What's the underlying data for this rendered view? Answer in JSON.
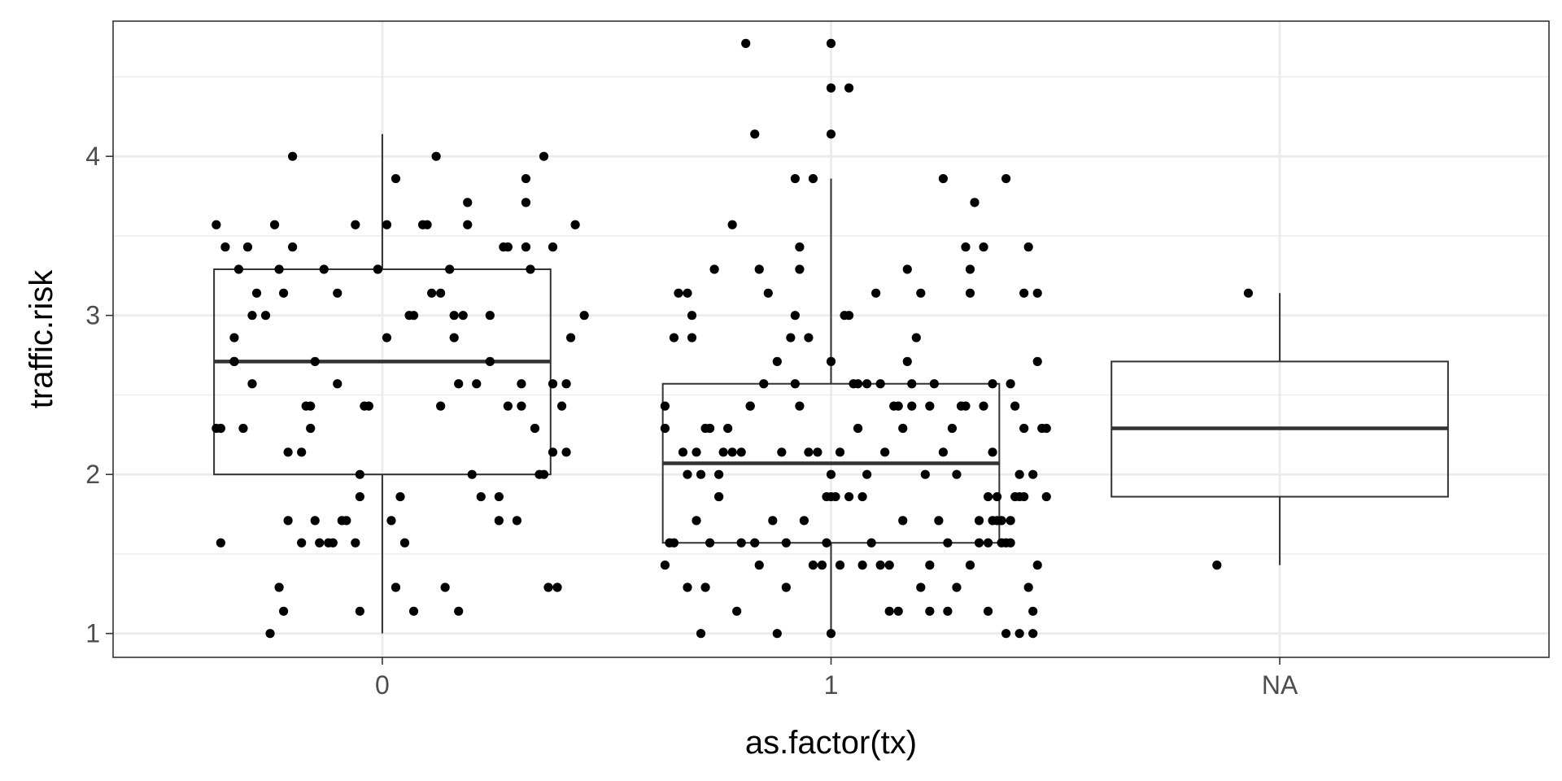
{
  "chart_data": {
    "type": "boxplot",
    "xlabel": "as.factor(tx)",
    "ylabel": "traffic.risk",
    "categories": [
      "0",
      "1",
      "NA"
    ],
    "yticks": [
      1,
      2,
      3,
      4
    ],
    "ylim": [
      0.85,
      4.85
    ],
    "grid": true,
    "colors": {
      "panel_border": "#333333",
      "grid": "#ebebeb",
      "box": "#333333",
      "point": "#000000"
    },
    "boxes": [
      {
        "category": "0",
        "whisker_low": 1.0,
        "q1": 2.0,
        "median": 2.71,
        "q3": 3.29,
        "whisker_high": 4.14
      },
      {
        "category": "1",
        "whisker_low": 1.0,
        "q1": 1.57,
        "median": 2.07,
        "q3": 2.57,
        "whisker_high": 3.86
      },
      {
        "category": "NA",
        "whisker_low": 1.43,
        "q1": 1.86,
        "median": 2.29,
        "q3": 2.71,
        "whisker_high": 3.14
      }
    ],
    "points": [
      {
        "x": -0.37,
        "y": 3.57
      },
      {
        "x": -0.35,
        "y": 3.43
      },
      {
        "x": -0.33,
        "y": 2.71
      },
      {
        "x": -0.33,
        "y": 2.71
      },
      {
        "x": -0.32,
        "y": 3.29
      },
      {
        "x": -0.36,
        "y": 2.29
      },
      {
        "x": -0.31,
        "y": 2.29
      },
      {
        "x": -0.36,
        "y": 1.57
      },
      {
        "x": -0.3,
        "y": 3.43
      },
      {
        "x": -0.29,
        "y": 3.0
      },
      {
        "x": -0.29,
        "y": 2.57
      },
      {
        "x": -0.28,
        "y": 3.14
      },
      {
        "x": -0.26,
        "y": 3.0
      },
      {
        "x": -0.24,
        "y": 3.57
      },
      {
        "x": -0.23,
        "y": 3.29
      },
      {
        "x": -0.22,
        "y": 3.14
      },
      {
        "x": -0.21,
        "y": 2.14
      },
      {
        "x": -0.2,
        "y": 3.43
      },
      {
        "x": -0.2,
        "y": 4.0
      },
      {
        "x": -0.17,
        "y": 2.43
      },
      {
        "x": -0.16,
        "y": 2.29
      },
      {
        "x": -0.16,
        "y": 2.43
      },
      {
        "x": -0.15,
        "y": 2.71
      },
      {
        "x": -0.15,
        "y": 1.71
      },
      {
        "x": -0.14,
        "y": 1.57
      },
      {
        "x": -0.12,
        "y": 1.57
      },
      {
        "x": -0.13,
        "y": 3.29
      },
      {
        "x": -0.11,
        "y": 1.57
      },
      {
        "x": -0.1,
        "y": 2.57
      },
      {
        "x": -0.09,
        "y": 1.71
      },
      {
        "x": -0.08,
        "y": 1.71
      },
      {
        "x": -0.06,
        "y": 3.57
      },
      {
        "x": -0.05,
        "y": 2.0
      },
      {
        "x": -0.05,
        "y": 1.86
      },
      {
        "x": -0.06,
        "y": 1.57
      },
      {
        "x": -0.04,
        "y": 2.43
      },
      {
        "x": -0.03,
        "y": 2.43
      },
      {
        "x": -0.01,
        "y": 3.29
      },
      {
        "x": -0.01,
        "y": 3.29
      },
      {
        "x": 0.01,
        "y": 3.57
      },
      {
        "x": 0.01,
        "y": 2.86
      },
      {
        "x": 0.02,
        "y": 1.71
      },
      {
        "x": 0.03,
        "y": 3.86
      },
      {
        "x": 0.04,
        "y": 1.86
      },
      {
        "x": 0.06,
        "y": 3.0
      },
      {
        "x": 0.07,
        "y": 3.0
      },
      {
        "x": 0.07,
        "y": 1.14
      },
      {
        "x": 0.09,
        "y": 3.57
      },
      {
        "x": 0.1,
        "y": 3.57
      },
      {
        "x": 0.11,
        "y": 3.14
      },
      {
        "x": 0.12,
        "y": 4.0
      },
      {
        "x": 0.13,
        "y": 2.43
      },
      {
        "x": 0.14,
        "y": 1.29
      },
      {
        "x": 0.15,
        "y": 3.29
      },
      {
        "x": 0.16,
        "y": 3.0
      },
      {
        "x": 0.16,
        "y": 2.86
      },
      {
        "x": 0.17,
        "y": 1.14
      },
      {
        "x": 0.17,
        "y": 2.57
      },
      {
        "x": 0.18,
        "y": 3.0
      },
      {
        "x": 0.19,
        "y": 3.71
      },
      {
        "x": 0.19,
        "y": 3.57
      },
      {
        "x": 0.2,
        "y": 2.0
      },
      {
        "x": 0.21,
        "y": 2.57
      },
      {
        "x": 0.24,
        "y": 3.0
      },
      {
        "x": 0.24,
        "y": 2.71
      },
      {
        "x": 0.26,
        "y": 1.86
      },
      {
        "x": 0.26,
        "y": 1.71
      },
      {
        "x": 0.27,
        "y": 3.43
      },
      {
        "x": 0.28,
        "y": 3.43
      },
      {
        "x": 0.28,
        "y": 2.43
      },
      {
        "x": 0.3,
        "y": 1.71
      },
      {
        "x": 0.31,
        "y": 2.43
      },
      {
        "x": 0.31,
        "y": 2.57
      },
      {
        "x": 0.32,
        "y": 3.86
      },
      {
        "x": 0.32,
        "y": 3.71
      },
      {
        "x": 0.32,
        "y": 3.43
      },
      {
        "x": 0.33,
        "y": 3.29
      },
      {
        "x": 0.34,
        "y": 2.29
      },
      {
        "x": 0.35,
        "y": 2.0
      },
      {
        "x": 0.36,
        "y": 4.0
      },
      {
        "x": 0.36,
        "y": 2.0
      },
      {
        "x": 0.37,
        "y": 1.29
      },
      {
        "x": 0.38,
        "y": 3.43
      },
      {
        "x": 0.38,
        "y": 2.57
      },
      {
        "x": 0.38,
        "y": 2.14
      },
      {
        "x": 0.39,
        "y": 1.29
      },
      {
        "x": 0.4,
        "y": 2.43
      },
      {
        "x": 0.41,
        "y": 2.14
      },
      {
        "x": 0.41,
        "y": 2.57
      },
      {
        "x": 0.42,
        "y": 2.86
      },
      {
        "x": 0.43,
        "y": 3.57
      },
      {
        "x": 0.45,
        "y": 3.0
      },
      {
        "x": -0.25,
        "y": 1.0
      },
      {
        "x": -0.23,
        "y": 1.29
      },
      {
        "x": -0.22,
        "y": 1.14
      },
      {
        "x": -0.21,
        "y": 1.71
      },
      {
        "x": -0.18,
        "y": 1.57
      },
      {
        "x": -0.05,
        "y": 1.14
      },
      {
        "x": 0.03,
        "y": 1.29
      },
      {
        "x": 0.05,
        "y": 1.57
      },
      {
        "x": -0.37,
        "y": 2.29
      },
      {
        "x": -0.33,
        "y": 2.86
      },
      {
        "x": -0.18,
        "y": 2.14
      },
      {
        "x": -0.1,
        "y": 3.14
      },
      {
        "x": 0.13,
        "y": 3.14
      },
      {
        "x": 0.22,
        "y": 1.86
      },
      {
        "x": 0.63,
        "y": 2.43
      },
      {
        "x": 0.63,
        "y": 2.29
      },
      {
        "x": 0.64,
        "y": 1.57
      },
      {
        "x": 0.63,
        "y": 1.43
      },
      {
        "x": 0.65,
        "y": 1.57
      },
      {
        "x": 0.65,
        "y": 2.86
      },
      {
        "x": 0.66,
        "y": 3.14
      },
      {
        "x": 0.68,
        "y": 3.14
      },
      {
        "x": 0.68,
        "y": 1.29
      },
      {
        "x": 0.69,
        "y": 3.0
      },
      {
        "x": 0.69,
        "y": 2.86
      },
      {
        "x": 0.7,
        "y": 2.14
      },
      {
        "x": 0.7,
        "y": 1.71
      },
      {
        "x": 0.71,
        "y": 2.0
      },
      {
        "x": 0.71,
        "y": 1.0
      },
      {
        "x": 0.72,
        "y": 2.29
      },
      {
        "x": 0.73,
        "y": 1.57
      },
      {
        "x": 0.74,
        "y": 3.29
      },
      {
        "x": 0.75,
        "y": 1.86
      },
      {
        "x": 0.75,
        "y": 2.0
      },
      {
        "x": 0.76,
        "y": 2.14
      },
      {
        "x": 0.77,
        "y": 2.29
      },
      {
        "x": 0.78,
        "y": 2.14
      },
      {
        "x": 0.79,
        "y": 1.14
      },
      {
        "x": 0.8,
        "y": 2.14
      },
      {
        "x": 0.8,
        "y": 1.57
      },
      {
        "x": 0.82,
        "y": 2.43
      },
      {
        "x": 0.82,
        "y": 2.43
      },
      {
        "x": 0.84,
        "y": 3.29
      },
      {
        "x": 0.84,
        "y": 1.43
      },
      {
        "x": 0.85,
        "y": 2.57
      },
      {
        "x": 0.86,
        "y": 3.14
      },
      {
        "x": 0.87,
        "y": 1.71
      },
      {
        "x": 0.88,
        "y": 2.71
      },
      {
        "x": 0.89,
        "y": 2.14
      },
      {
        "x": 0.9,
        "y": 1.29
      },
      {
        "x": 0.9,
        "y": 1.57
      },
      {
        "x": 0.91,
        "y": 2.86
      },
      {
        "x": 0.92,
        "y": 3.0
      },
      {
        "x": 0.93,
        "y": 3.43
      },
      {
        "x": 0.93,
        "y": 3.29
      },
      {
        "x": 0.93,
        "y": 2.43
      },
      {
        "x": 0.94,
        "y": 1.71
      },
      {
        "x": 0.95,
        "y": 2.86
      },
      {
        "x": 0.95,
        "y": 2.14
      },
      {
        "x": 0.96,
        "y": 1.43
      },
      {
        "x": 0.96,
        "y": 3.86
      },
      {
        "x": 0.98,
        "y": 1.43
      },
      {
        "x": 0.99,
        "y": 1.86
      },
      {
        "x": 1.0,
        "y": 2.71
      },
      {
        "x": 1.0,
        "y": 2.0
      },
      {
        "x": 1.01,
        "y": 1.86
      },
      {
        "x": 1.02,
        "y": 1.43
      },
      {
        "x": 1.02,
        "y": 2.14
      },
      {
        "x": 1.03,
        "y": 3.0
      },
      {
        "x": 1.04,
        "y": 3.0
      },
      {
        "x": 1.05,
        "y": 2.57
      },
      {
        "x": 1.06,
        "y": 2.29
      },
      {
        "x": 1.06,
        "y": 2.57
      },
      {
        "x": 1.07,
        "y": 1.86
      },
      {
        "x": 1.07,
        "y": 1.43
      },
      {
        "x": 1.08,
        "y": 2.0
      },
      {
        "x": 1.09,
        "y": 1.57
      },
      {
        "x": 1.1,
        "y": 3.14
      },
      {
        "x": 1.11,
        "y": 2.57
      },
      {
        "x": 1.11,
        "y": 1.43
      },
      {
        "x": 1.12,
        "y": 2.14
      },
      {
        "x": 1.13,
        "y": 1.14
      },
      {
        "x": 1.14,
        "y": 2.43
      },
      {
        "x": 1.15,
        "y": 2.43
      },
      {
        "x": 1.15,
        "y": 1.14
      },
      {
        "x": 1.16,
        "y": 2.29
      },
      {
        "x": 1.16,
        "y": 1.71
      },
      {
        "x": 1.17,
        "y": 2.71
      },
      {
        "x": 1.17,
        "y": 3.29
      },
      {
        "x": 1.18,
        "y": 2.43
      },
      {
        "x": 1.18,
        "y": 2.57
      },
      {
        "x": 1.2,
        "y": 3.14
      },
      {
        "x": 1.2,
        "y": 1.29
      },
      {
        "x": 1.21,
        "y": 2.0
      },
      {
        "x": 1.22,
        "y": 1.43
      },
      {
        "x": 1.22,
        "y": 2.43
      },
      {
        "x": 1.23,
        "y": 2.57
      },
      {
        "x": 1.24,
        "y": 1.71
      },
      {
        "x": 1.25,
        "y": 2.14
      },
      {
        "x": 1.26,
        "y": 1.57
      },
      {
        "x": 1.26,
        "y": 1.14
      },
      {
        "x": 1.27,
        "y": 2.29
      },
      {
        "x": 1.28,
        "y": 1.29
      },
      {
        "x": 1.28,
        "y": 2.0
      },
      {
        "x": 1.29,
        "y": 2.43
      },
      {
        "x": 1.3,
        "y": 2.43
      },
      {
        "x": 1.3,
        "y": 3.43
      },
      {
        "x": 1.31,
        "y": 3.29
      },
      {
        "x": 1.31,
        "y": 3.14
      },
      {
        "x": 1.32,
        "y": 3.71
      },
      {
        "x": 1.33,
        "y": 1.71
      },
      {
        "x": 1.33,
        "y": 1.57
      },
      {
        "x": 1.34,
        "y": 3.43
      },
      {
        "x": 1.34,
        "y": 2.43
      },
      {
        "x": 1.35,
        "y": 1.86
      },
      {
        "x": 1.35,
        "y": 1.57
      },
      {
        "x": 1.36,
        "y": 2.14
      },
      {
        "x": 1.36,
        "y": 1.71
      },
      {
        "x": 1.37,
        "y": 1.86
      },
      {
        "x": 1.37,
        "y": 1.71
      },
      {
        "x": 1.38,
        "y": 1.57
      },
      {
        "x": 1.38,
        "y": 1.71
      },
      {
        "x": 1.39,
        "y": 1.57
      },
      {
        "x": 1.4,
        "y": 2.57
      },
      {
        "x": 1.4,
        "y": 1.57
      },
      {
        "x": 1.41,
        "y": 1.86
      },
      {
        "x": 1.41,
        "y": 2.43
      },
      {
        "x": 1.42,
        "y": 2.0
      },
      {
        "x": 1.42,
        "y": 1.86
      },
      {
        "x": 1.43,
        "y": 2.29
      },
      {
        "x": 1.43,
        "y": 3.14
      },
      {
        "x": 1.44,
        "y": 3.43
      },
      {
        "x": 1.44,
        "y": 1.29
      },
      {
        "x": 1.45,
        "y": 1.14
      },
      {
        "x": 1.45,
        "y": 1.0
      },
      {
        "x": 1.46,
        "y": 3.14
      },
      {
        "x": 1.46,
        "y": 2.71
      },
      {
        "x": 1.47,
        "y": 2.29
      },
      {
        "x": 1.48,
        "y": 1.86
      },
      {
        "x": 1.48,
        "y": 2.29
      },
      {
        "x": 1.39,
        "y": 1.0
      },
      {
        "x": 1.42,
        "y": 1.0
      },
      {
        "x": 1.45,
        "y": 2.0
      },
      {
        "x": 1.43,
        "y": 1.86
      },
      {
        "x": 1.36,
        "y": 2.57
      },
      {
        "x": 1.25,
        "y": 3.86
      },
      {
        "x": 1.39,
        "y": 3.86
      },
      {
        "x": 1.19,
        "y": 2.86
      },
      {
        "x": 1.08,
        "y": 2.57
      },
      {
        "x": 0.68,
        "y": 2.0
      },
      {
        "x": 0.67,
        "y": 2.14
      },
      {
        "x": 0.73,
        "y": 2.29
      },
      {
        "x": 0.72,
        "y": 1.29
      },
      {
        "x": 0.75,
        "y": 1.86
      },
      {
        "x": 0.92,
        "y": 3.86
      },
      {
        "x": 0.92,
        "y": 2.57
      },
      {
        "x": 0.97,
        "y": 2.14
      },
      {
        "x": 0.99,
        "y": 1.57
      },
      {
        "x": 1.0,
        "y": 1.86
      },
      {
        "x": 0.78,
        "y": 3.57
      },
      {
        "x": 1.22,
        "y": 1.14
      },
      {
        "x": 1.31,
        "y": 1.43
      },
      {
        "x": 1.35,
        "y": 1.14
      },
      {
        "x": 1.46,
        "y": 1.43
      },
      {
        "x": 0.88,
        "y": 1.0
      },
      {
        "x": 0.83,
        "y": 1.57
      },
      {
        "x": 1.04,
        "y": 1.86
      },
      {
        "x": 1.13,
        "y": 1.43
      },
      {
        "x": 1.4,
        "y": 1.71
      },
      {
        "x": 0.81,
        "y": 4.71
      },
      {
        "x": 1.0,
        "y": 4.71
      },
      {
        "x": 1.0,
        "y": 4.43
      },
      {
        "x": 1.04,
        "y": 4.43
      },
      {
        "x": 0.83,
        "y": 4.14
      },
      {
        "x": 1.0,
        "y": 4.14
      },
      {
        "x": 1.0,
        "y": 1.0
      },
      {
        "x": 1.93,
        "y": 3.14
      },
      {
        "x": 1.86,
        "y": 1.43
      }
    ]
  }
}
